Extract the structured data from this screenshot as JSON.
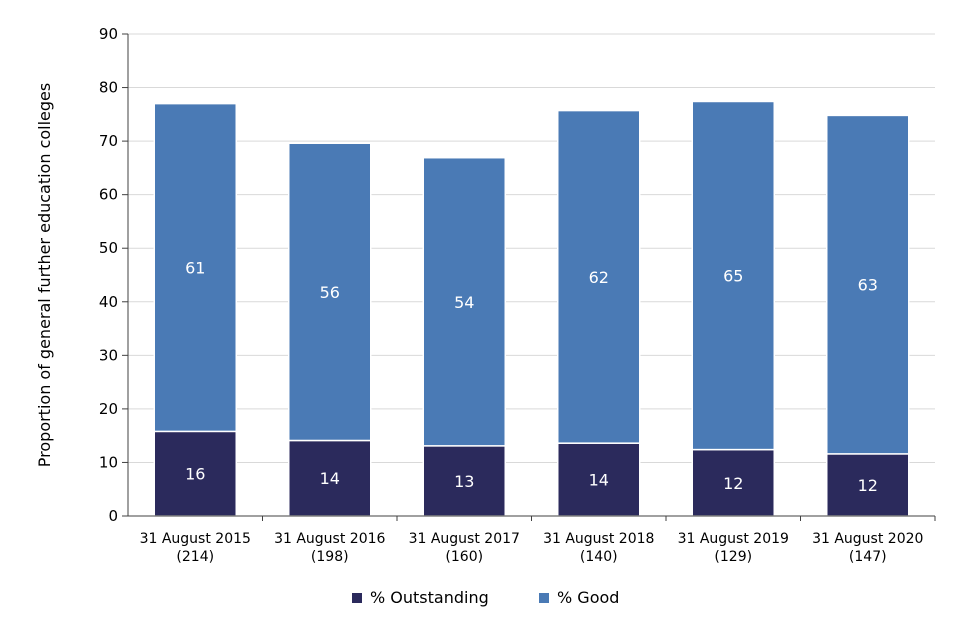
{
  "chart_data": {
    "type": "bar",
    "stacked": true,
    "title": "",
    "xlabel": "",
    "ylabel": "Proportion of general further education colleges",
    "ylim": [
      0,
      90
    ],
    "yticks": [
      0,
      10,
      20,
      30,
      40,
      50,
      60,
      70,
      80,
      90
    ],
    "grid": true,
    "legend_position": "bottom",
    "categories": [
      "31 August 2015 (214)",
      "31 August 2016 (198)",
      "31 August 2017 (160)",
      "31 August 2018 (140)",
      "31 August 2019 (129)",
      "31 August 2020 (147)"
    ],
    "category_lines": [
      [
        "31 August 2015",
        "(214)"
      ],
      [
        "31 August 2016",
        "(198)"
      ],
      [
        "31 August 2017",
        "(160)"
      ],
      [
        "31 August 2018",
        "(140)"
      ],
      [
        "31 August 2019",
        "(129)"
      ],
      [
        "31 August 2020",
        "(147)"
      ]
    ],
    "series": [
      {
        "name": "% Outstanding",
        "color": "#2b2a5c",
        "values": [
          15.8,
          14.1,
          13.1,
          13.6,
          12.4,
          11.6
        ],
        "labels": [
          "16",
          "14",
          "13",
          "14",
          "12",
          "12"
        ]
      },
      {
        "name": "% Good",
        "color": "#4a7ab5",
        "values": [
          61.2,
          55.5,
          53.8,
          62.1,
          65.0,
          63.2
        ],
        "labels": [
          "61",
          "56",
          "54",
          "62",
          "65",
          "63"
        ]
      }
    ]
  }
}
